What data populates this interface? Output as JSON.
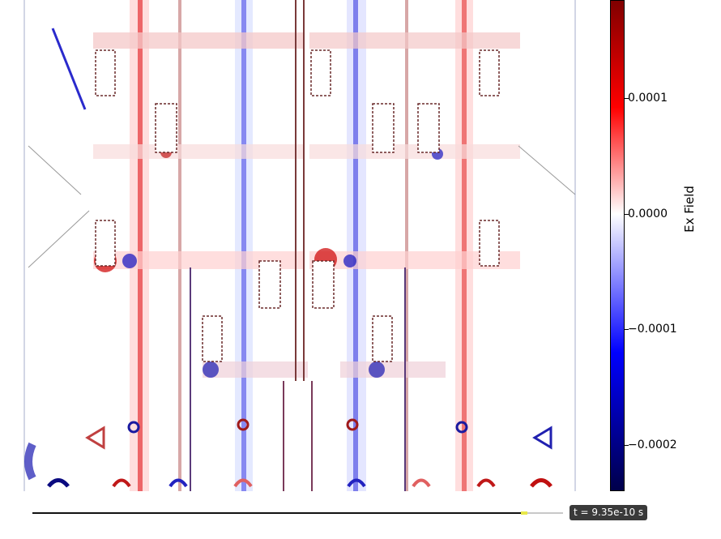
{
  "colorbar": {
    "title": "Ex Field",
    "ticks": [
      {
        "value": 0.0001,
        "label": "0.0001"
      },
      {
        "value": 0.0,
        "label": "0.0000"
      },
      {
        "value": -0.0001,
        "label": "−0.0001"
      },
      {
        "value": -0.0002,
        "label": "−0.0002"
      }
    ],
    "range": [
      -0.00024,
      0.000185
    ],
    "colors": {
      "negative": "#00004a",
      "neutral": "#ffffff",
      "positive": "#800000"
    }
  },
  "timeline": {
    "label": "t = 9.35e-10 s",
    "progress": 0.92,
    "colors": {
      "played": "#111111",
      "remaining": "#c8c8c8",
      "marker": "#e8e84a"
    }
  }
}
